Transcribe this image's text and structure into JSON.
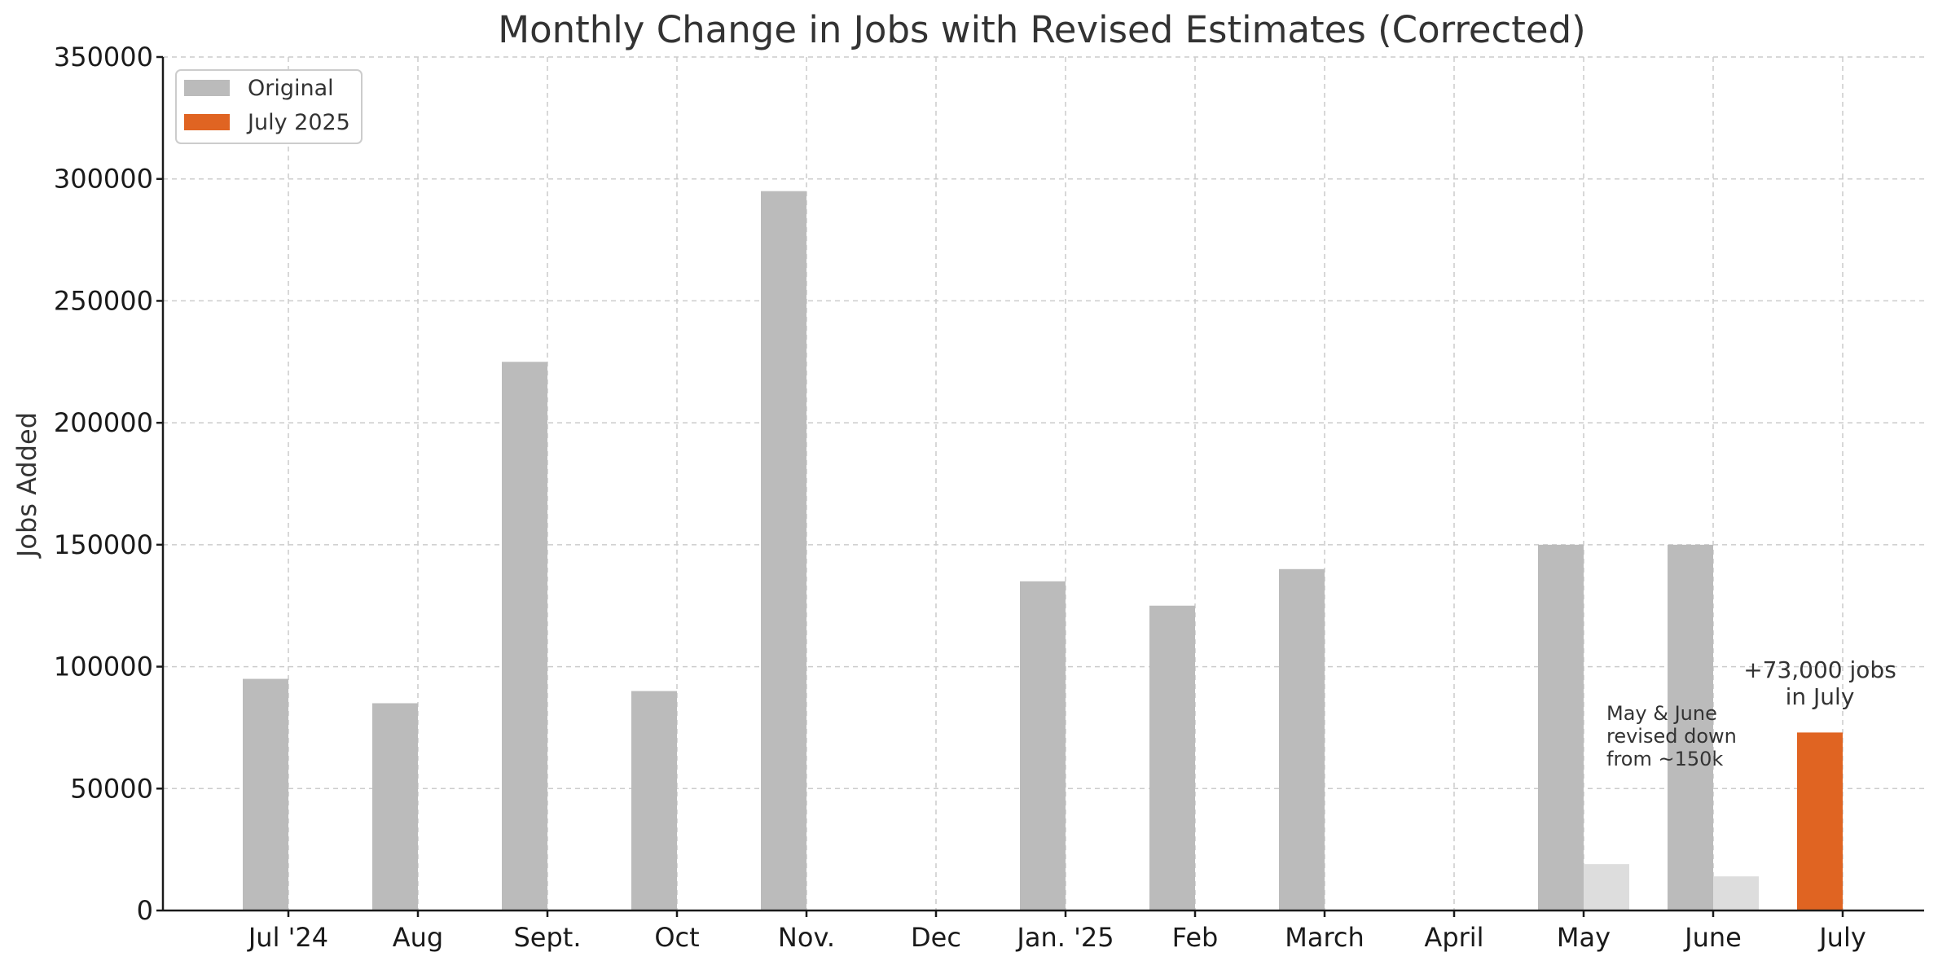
{
  "chart_data": {
    "type": "bar",
    "title": "Monthly Change in Jobs with Revised Estimates (Corrected)",
    "xlabel": "",
    "ylabel": "Jobs Added",
    "ylim": [
      0,
      350000
    ],
    "yticks": [
      0,
      50000,
      100000,
      150000,
      200000,
      250000,
      300000,
      350000
    ],
    "ytick_labels": [
      "0",
      "50000",
      "100000",
      "150000",
      "200000",
      "250000",
      "300000",
      "350000"
    ],
    "grid": true,
    "legend_position": "top-left",
    "categories": [
      "Jul '24",
      "Aug",
      "Sept.",
      "Oct",
      "Nov.",
      "Dec",
      "Jan. '25",
      "Feb",
      "March",
      "April",
      "May",
      "June",
      "July"
    ],
    "series": [
      {
        "name": "Original",
        "color": "#bbbbbb",
        "values": [
          95000,
          85000,
          225000,
          90000,
          295000,
          null,
          135000,
          125000,
          140000,
          null,
          150000,
          150000,
          null
        ]
      },
      {
        "color": "#dddddd",
        "values": [
          null,
          null,
          null,
          null,
          null,
          null,
          null,
          null,
          null,
          null,
          19000,
          14000,
          null
        ]
      },
      {
        "name": "July 2025",
        "color": "#e06422",
        "values": [
          null,
          null,
          null,
          null,
          null,
          null,
          null,
          null,
          null,
          null,
          null,
          null,
          73000
        ]
      }
    ],
    "legend": [
      {
        "label": "Original",
        "color": "#bbbbbb"
      },
      {
        "label": "July 2025",
        "color": "#e06422"
      }
    ],
    "annotations": [
      {
        "lines": [
          "May & June",
          "revised down",
          "from ~150k"
        ]
      },
      {
        "lines": [
          "+73,000 jobs",
          "in July"
        ]
      }
    ]
  }
}
